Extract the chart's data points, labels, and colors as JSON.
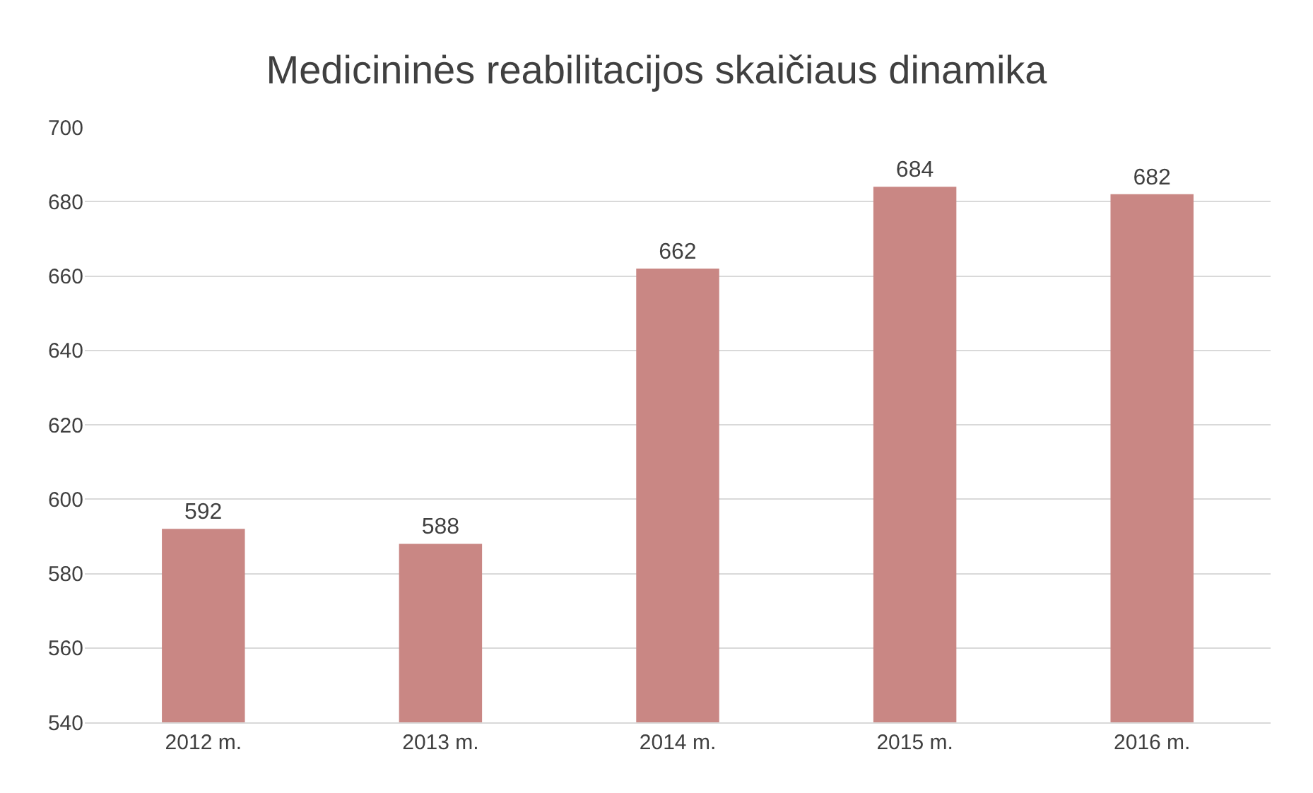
{
  "chart_data": {
    "type": "bar",
    "title": "Medicininės reabilitacijos skaičiaus dinamika",
    "categories": [
      "2012 m.",
      "2013 m.",
      "2014 m.",
      "2015 m.",
      "2016 m."
    ],
    "values": [
      592,
      588,
      662,
      684,
      682
    ],
    "color": "#c98784",
    "ylim": [
      540,
      700
    ],
    "yticks": [
      540,
      560,
      580,
      600,
      620,
      640,
      660,
      680,
      700
    ],
    "grid": "y",
    "data_labels": true
  }
}
